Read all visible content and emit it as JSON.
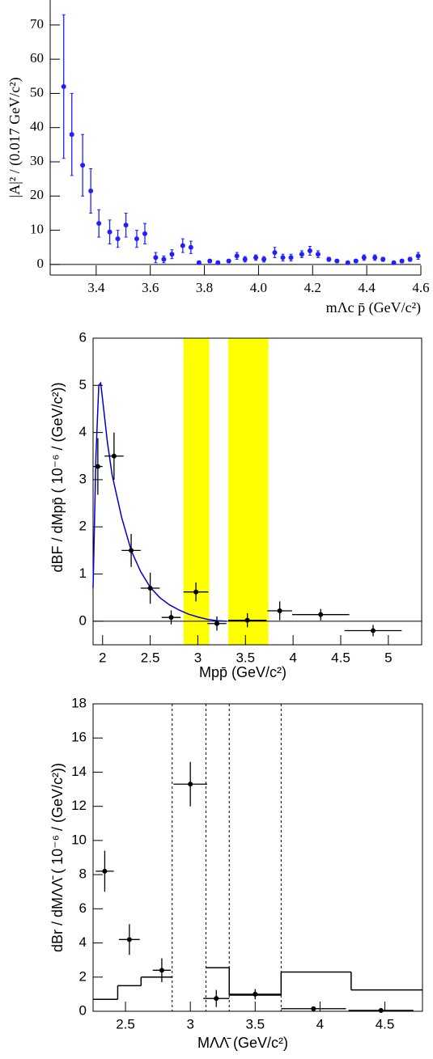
{
  "chart_data": [
    {
      "type": "scatter",
      "x_label": "mΛc p̄ (GeV/c²)",
      "y_label": "|A|² / (0.017 GeV/c²)",
      "color": "#1f1fff",
      "xlim": [
        3.23,
        4.6
      ],
      "ylim": [
        -3.1,
        77.3
      ],
      "xticks": [
        3.4,
        3.6,
        3.8,
        {
          "value": 4,
          "label": "4.0"
        },
        4.2,
        4.4,
        4.6
      ],
      "yticks": [
        0,
        10,
        20,
        30,
        40,
        50,
        60,
        70
      ],
      "x": [
        3.28,
        3.31,
        3.35,
        3.38,
        3.41,
        3.45,
        3.48,
        3.51,
        3.55,
        3.58,
        3.62,
        3.65,
        3.68,
        3.72,
        3.75,
        3.78,
        3.82,
        3.85,
        3.89,
        3.92,
        3.95,
        3.99,
        4.02,
        4.06,
        4.09,
        4.12,
        4.16,
        4.19,
        4.22,
        4.26,
        4.29,
        4.33,
        4.36,
        4.39,
        4.43,
        4.46,
        4.5,
        4.53,
        4.56,
        4.59
      ],
      "values": [
        52,
        38,
        29,
        21.5,
        12,
        9.5,
        7.5,
        11.5,
        7.5,
        9,
        2,
        1.5,
        3,
        5.5,
        5,
        0.5,
        1,
        0.5,
        1,
        2.5,
        1.5,
        2,
        1.5,
        3.5,
        2,
        2,
        3,
        4,
        3,
        1.5,
        1,
        0.5,
        1,
        2,
        2,
        1.5,
        0.5,
        1,
        1.5,
        2.5
      ],
      "errors": [
        21,
        12,
        9,
        6.5,
        4,
        3.5,
        2.5,
        3.5,
        2.5,
        3,
        1.5,
        1,
        1.3,
        2,
        1.8,
        0.5,
        0.5,
        0.5,
        0.5,
        1,
        0.8,
        0.8,
        0.8,
        1.5,
        1,
        1,
        1,
        1.3,
        1,
        0.6,
        0.5,
        0.4,
        0.5,
        0.8,
        0.8,
        0.6,
        0.4,
        0.5,
        0.6,
        1
      ]
    },
    {
      "type": "scatter",
      "x_label": "Mpp̄    (GeV/c²)",
      "y_label": "dBF / dMpp̄    ( 10⁻⁶ / (GeV/c²))",
      "color": "#000000",
      "xlim": [
        1.9,
        5.35
      ],
      "ylim": [
        -0.5,
        6
      ],
      "xticks": [
        2,
        2.5,
        3,
        3.5,
        4,
        4.5,
        5
      ],
      "yticks": [
        0,
        1,
        2,
        3,
        4,
        5,
        6
      ],
      "bands": [
        [
          2.85,
          3.12
        ],
        [
          3.32,
          3.74
        ]
      ],
      "band_color": "#ffff00",
      "x": [
        1.95,
        2.12,
        2.3,
        2.5,
        2.72,
        2.98,
        3.2,
        3.52,
        3.86,
        4.29,
        4.84
      ],
      "xerrors": [
        0.05,
        0.1,
        0.1,
        0.1,
        0.1,
        0.13,
        0.1,
        0.2,
        0.13,
        0.3,
        0.3
      ],
      "values": [
        3.28,
        3.5,
        1.5,
        0.7,
        0.08,
        0.62,
        -0.05,
        0.02,
        0.22,
        0.14,
        -0.2
      ],
      "errors": [
        0.6,
        0.5,
        0.35,
        0.33,
        0.15,
        0.2,
        0.15,
        0.15,
        0.2,
        0.12,
        0.12
      ],
      "curve": {
        "color": "#0000cc",
        "x": [
          1.9,
          1.93,
          1.96,
          1.98,
          2.0,
          2.05,
          2.1,
          2.2,
          2.3,
          2.4,
          2.5,
          2.6,
          2.7,
          2.8,
          2.9,
          3.0,
          3.1,
          3.2,
          3.3
        ],
        "values": [
          0.7,
          3.5,
          5.0,
          5.05,
          4.7,
          3.8,
          3.1,
          2.2,
          1.5,
          1.05,
          0.72,
          0.5,
          0.35,
          0.24,
          0.15,
          0.09,
          0.04,
          0.01,
          0
        ]
      }
    },
    {
      "type": "scatter",
      "x_label": "MΛΛ̄    (GeV/c²)",
      "y_label": "dBr / dMΛΛ̄    ( 10⁻⁶ / (GeV/c²))",
      "color": "#000000",
      "xlim": [
        2.25,
        4.79
      ],
      "ylim": [
        0,
        18
      ],
      "xticks": [
        2.5,
        3,
        3.5,
        4,
        4.5
      ],
      "yticks": [
        0,
        2,
        4,
        6,
        8,
        10,
        12,
        14,
        16,
        18
      ],
      "dashed_lines": [
        2.86,
        3.12,
        3.3,
        3.7
      ],
      "x": [
        2.34,
        2.53,
        2.78,
        3.0,
        3.2,
        3.5,
        3.95,
        4.47
      ],
      "xerrors": [
        0.07,
        0.08,
        0.07,
        0.13,
        0.1,
        0.2,
        0.25,
        0.25
      ],
      "values": [
        8.2,
        4.2,
        2.4,
        13.3,
        0.75,
        1.0,
        0.15,
        0.05
      ],
      "errors": [
        1.2,
        0.9,
        0.7,
        1.3,
        0.5,
        0.3,
        0.1,
        0.05
      ],
      "histogram": {
        "bins": [
          2.25,
          2.44,
          2.62,
          2.86,
          3.12,
          3.3,
          3.7,
          4.24,
          4.79
        ],
        "counts": [
          0.7,
          1.5,
          2.0,
          null,
          2.55,
          0.95,
          2.3,
          1.25
        ]
      }
    }
  ]
}
